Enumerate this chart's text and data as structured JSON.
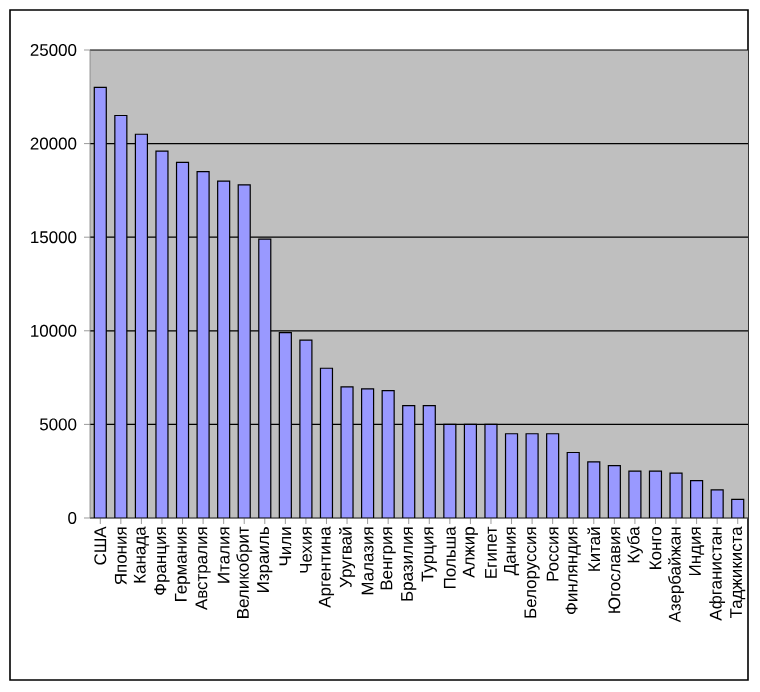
{
  "chart_data": {
    "type": "bar",
    "categories": [
      "США",
      "Япония",
      "Канада",
      "Франция",
      "Германия",
      "Австралия",
      "Италия",
      "Великобрит",
      "Израиль",
      "Чили",
      "Чехия",
      "Аргентина",
      "Уругвай",
      "Малазия",
      "Венгрия",
      "Бразилия",
      "Турция",
      "Польша",
      "Алжир",
      "Египет",
      "Дания",
      "Белоруссия",
      "Россия",
      "Финляндия",
      "Китай",
      "Югославия",
      "Куба",
      "Конго",
      "Азербайжан",
      "Индия",
      "Афганистан",
      "Таджикиста"
    ],
    "values": [
      23000,
      21500,
      20500,
      19600,
      19000,
      18500,
      18000,
      17800,
      14900,
      9900,
      9500,
      8000,
      7000,
      6900,
      6800,
      6000,
      6000,
      5000,
      5000,
      5000,
      4500,
      4500,
      4500,
      3500,
      3000,
      2800,
      2500,
      2500,
      2400,
      2000,
      1500,
      1000
    ],
    "color": "#9999ff",
    "ylim": [
      0,
      25000
    ],
    "yticks": [
      0,
      5000,
      10000,
      15000,
      20000,
      25000
    ],
    "grid": "y"
  }
}
